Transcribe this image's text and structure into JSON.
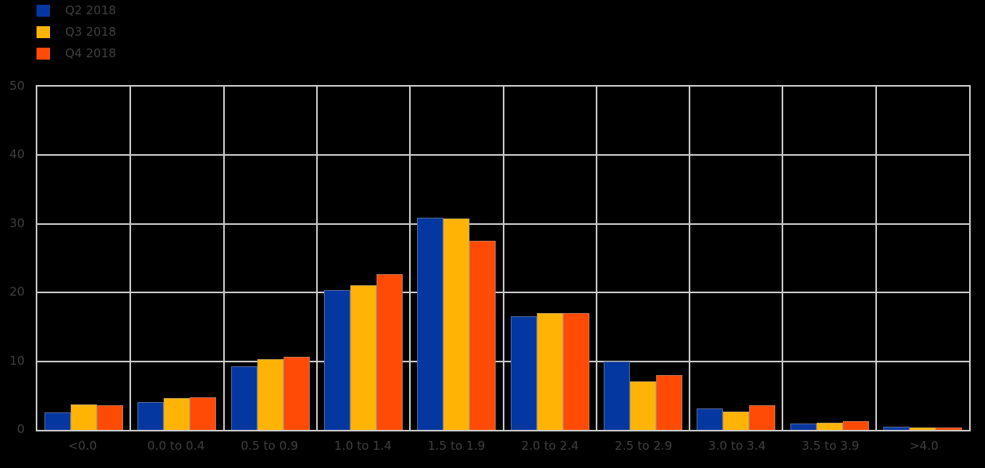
{
  "colors": {
    "background": "#000000",
    "grid": "#c8c8c8",
    "text": "#3f3f3f"
  },
  "legend": {
    "position": "top-left"
  },
  "chart_data": {
    "type": "bar",
    "title": "",
    "xlabel": "",
    "ylabel": "",
    "categories": [
      "<0.0",
      "0.0 to 0.4",
      "0.5 to 0.9",
      "1.0 to 1.4",
      "1.5 to 1.9",
      "2.0 to 2.4",
      "2.5 to 2.9",
      "3.0 to 3.4",
      "3.5 to 3.9",
      ">4.0"
    ],
    "series": [
      {
        "name": "Q2 2018",
        "color": "#0537A0",
        "values": [
          2.6,
          4.0,
          9.3,
          20.4,
          30.9,
          16.6,
          10.0,
          3.1,
          0.9,
          0.5
        ]
      },
      {
        "name": "Q3 2018",
        "color": "#FFB405",
        "values": [
          3.7,
          4.6,
          10.3,
          21.1,
          30.8,
          17.0,
          7.1,
          2.7,
          1.1,
          0.3
        ]
      },
      {
        "name": "Q4 2018",
        "color": "#FF4B05",
        "values": [
          3.6,
          4.7,
          10.6,
          22.7,
          27.5,
          17.0,
          8.0,
          3.6,
          1.3,
          0.4
        ]
      }
    ],
    "ylim": [
      0,
      50
    ],
    "yticks": [
      0,
      10,
      20,
      30,
      40,
      50
    ],
    "grid": true,
    "grid_color": "#c8c8c8",
    "legend_position": "top-left"
  }
}
